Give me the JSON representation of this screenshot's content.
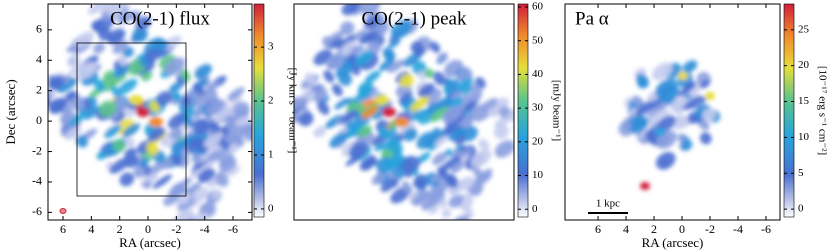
{
  "chart_data": [
    {
      "type": "image",
      "title": "CO(2-1) flux",
      "xlabel": "RA (arcsec)",
      "ylabel": "Dec (arcsec)",
      "xlim": [
        7.06,
        -7.34
      ],
      "xticks": [
        6,
        4,
        2,
        0,
        -2,
        -4,
        -6
      ],
      "ylim": [
        -6.5,
        7.7
      ],
      "yticks": [
        6,
        4,
        2,
        0,
        -2,
        -4,
        -6
      ],
      "colorbar_label": "[Jy km s⁻¹ beam⁻¹]",
      "clim": [
        -0.15,
        3.8
      ],
      "cticks": [
        0,
        1,
        2,
        3
      ]
    },
    {
      "type": "image",
      "title": "CO(2-1) peak",
      "colorbar_label": "[mJy beam⁻¹]",
      "clim": [
        -2.3,
        60.9
      ],
      "cticks": [
        0,
        10,
        20,
        30,
        40,
        50,
        60
      ]
    },
    {
      "type": "image",
      "title": "Pa α",
      "xlabel": "RA (arcsec)",
      "annotation": "1 kpc",
      "xlim": [
        8.36,
        -7
      ],
      "xticks": [
        6,
        4,
        2,
        0,
        -2,
        -4,
        -6
      ],
      "colorbar_label": "[10⁻¹⁷ erg s⁻¹ cm⁻²]",
      "clim": [
        -1.1,
        28.6
      ],
      "cticks": [
        0,
        5,
        10,
        15,
        20,
        25
      ]
    }
  ]
}
